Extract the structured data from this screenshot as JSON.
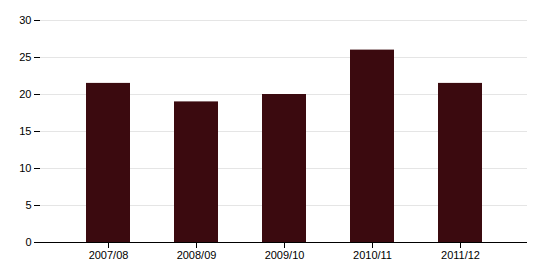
{
  "chart_data": {
    "type": "bar",
    "categories": [
      "2007/08",
      "2008/09",
      "2009/10",
      "2010/11",
      "2011/12"
    ],
    "values": [
      21.5,
      19,
      20,
      26,
      21.5
    ],
    "color": "#3B0A0F",
    "ylim": [
      0,
      30
    ],
    "yticks": [
      0,
      5,
      10,
      15,
      20,
      25,
      30
    ],
    "grid": true
  }
}
